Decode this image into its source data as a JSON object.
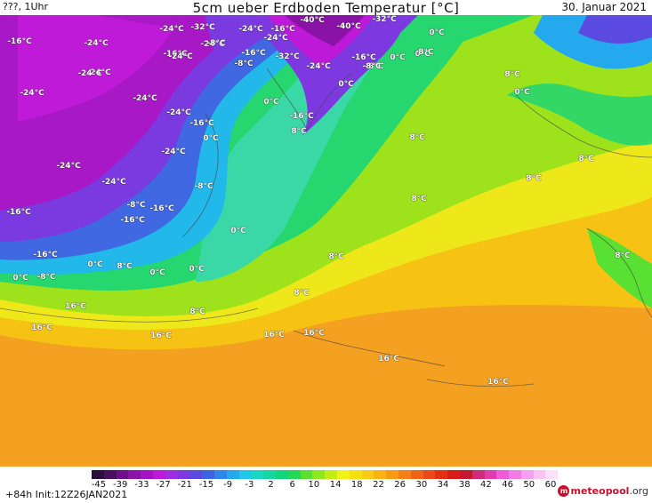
{
  "header": {
    "left": "???, 1Uhr",
    "title": "5cm ueber Erdboden Temperatur [°C]",
    "date": "30. Januar 2021"
  },
  "footer": {
    "run": "+84h  Init:12Z26JAN2021",
    "logo_meteo": "meteo",
    "logo_pool": "pool",
    "logo_org": ".org"
  },
  "colorbar": {
    "ticks": [
      "-45",
      "-39",
      "-33",
      "-27",
      "-21",
      "-15",
      "-9",
      "-3",
      "2",
      "6",
      "10",
      "14",
      "18",
      "22",
      "26",
      "30",
      "34",
      "38",
      "42",
      "46",
      "50",
      "60"
    ],
    "colors": [
      "#2a0f3a",
      "#4b0f5f",
      "#6d0f86",
      "#8a12a6",
      "#a414c2",
      "#be18d8",
      "#a02be0",
      "#7d38e0",
      "#5b4ae0",
      "#3e63e0",
      "#2e86e6",
      "#24a8ee",
      "#22c7e8",
      "#1ad6c6",
      "#14d8a0",
      "#12d67c",
      "#24d85a",
      "#58e032",
      "#8ee81c",
      "#c2ee14",
      "#f2f214",
      "#f6e010",
      "#f8cc10",
      "#f8b412",
      "#f89a14",
      "#f48016",
      "#f06418",
      "#ea4818",
      "#e23016",
      "#d81c18",
      "#c41830",
      "#d02a78",
      "#e03cb0",
      "#ee5ad8",
      "#f47ae6",
      "#f8a0ee",
      "#fbc2f4",
      "#fde0fa"
    ]
  },
  "temp_labels": [
    "-16°C",
    "-24°C",
    "-24°C",
    "-24°C",
    "-32°C",
    "-24°C",
    "-16°C",
    "-40°C",
    "-40°C",
    "-32°C",
    "0°C",
    "-24°C",
    "-16°C",
    "-8°C",
    "-24°C",
    "-24°C",
    "-24°C",
    "-16°C",
    "-8°C",
    "-32°C",
    "-24°C",
    "-16°C",
    "-8°C",
    "-24°C",
    "0°C",
    "0°C",
    "0°C",
    "0°C",
    "-8°C",
    "-8°C",
    "-8°C",
    "0°C",
    "-16°C",
    "8°C",
    "0°C",
    "-24°C",
    "-16°C",
    "8°C",
    "-24°C",
    "8°C",
    "-24°C",
    "-24°C",
    "-8°C",
    "8°C",
    "8°C",
    "-24°C",
    "-8°C",
    "-16°C",
    "8°C",
    "-16°C",
    "0°C",
    "-16°C",
    "8°C",
    "-16°C",
    "0°C",
    "8°C",
    "0°C",
    "0°C",
    "0°C",
    "-8°C",
    "8°C",
    "8°C",
    "8°C",
    "16°C",
    "16°C",
    "16°C",
    "16°C",
    "16°C",
    "16°C",
    "16°C"
  ]
}
